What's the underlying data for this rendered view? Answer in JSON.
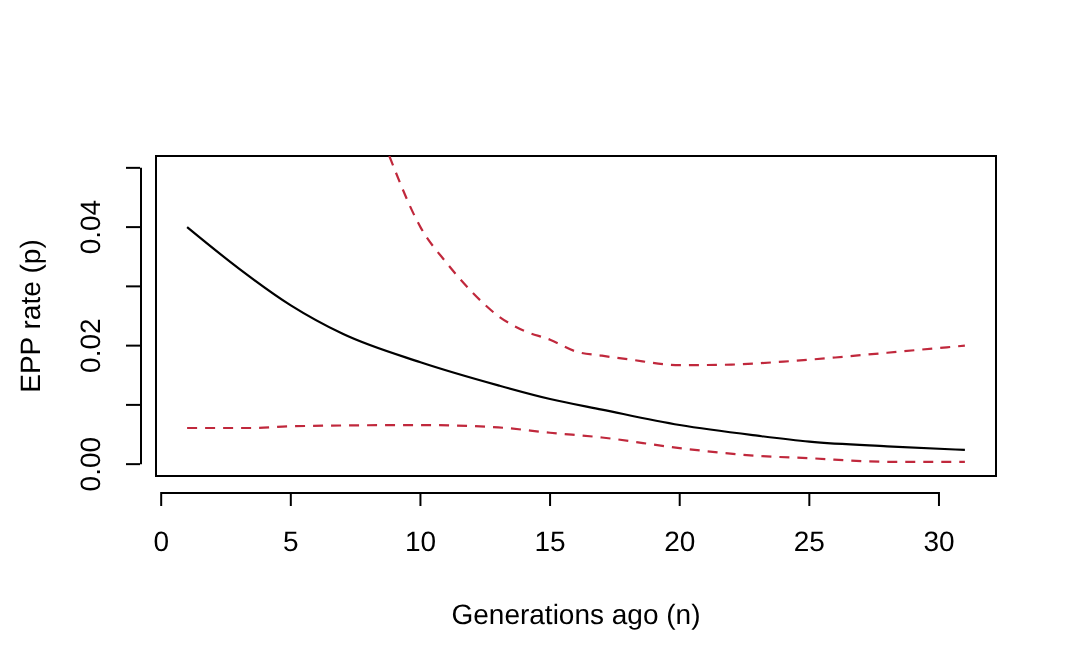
{
  "chart_data": {
    "type": "line",
    "xlabel": "Generations ago (n)",
    "ylabel": "EPP rate (p)",
    "xlim": [
      -0.2,
      32.2
    ],
    "xticks": [
      0,
      5,
      10,
      15,
      20,
      25,
      30
    ],
    "ylim": [
      -0.002,
      0.052
    ],
    "yticks": [
      {
        "value": 0,
        "label": "0.00"
      },
      {
        "value": 0.01,
        "label": null
      },
      {
        "value": 0.02,
        "label": "0.02"
      },
      {
        "value": 0.03,
        "label": null
      },
      {
        "value": 0.04,
        "label": "0.04"
      },
      {
        "value": 0.05,
        "label": null
      }
    ],
    "grid": false,
    "series": [
      {
        "color": "#000000",
        "line_style": "solid",
        "x": [
          1,
          3,
          5,
          7,
          10,
          13,
          15,
          17,
          20,
          23,
          25,
          28,
          31
        ],
        "values": [
          0.04,
          0.033,
          0.0268,
          0.022,
          0.0172,
          0.0133,
          0.011,
          0.0092,
          0.0066,
          0.0048,
          0.0038,
          0.003,
          0.0024
        ]
      },
      {
        "color": "#c0283c",
        "line_style": "dashed",
        "x": [
          8.8,
          10,
          11,
          12,
          13,
          14,
          15,
          16,
          17,
          18,
          20,
          22,
          24,
          26,
          28,
          30,
          31
        ],
        "values": [
          0.052,
          0.04,
          0.034,
          0.029,
          0.025,
          0.0225,
          0.021,
          0.019,
          0.0183,
          0.0177,
          0.0167,
          0.0168,
          0.0173,
          0.018,
          0.0188,
          0.0196,
          0.02
        ]
      },
      {
        "color": "#c0283c",
        "line_style": "dashed",
        "x": [
          1,
          3.5,
          5,
          10,
          13,
          15,
          17,
          20,
          23,
          25,
          28,
          31
        ],
        "values": [
          0.0061,
          0.0061,
          0.0064,
          0.0066,
          0.0062,
          0.0053,
          0.0045,
          0.0027,
          0.0014,
          0.001,
          0.0004,
          0.0004
        ]
      }
    ]
  }
}
